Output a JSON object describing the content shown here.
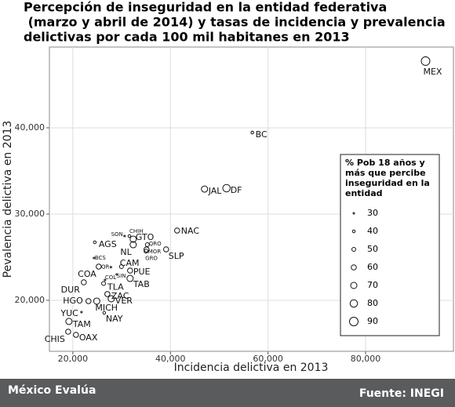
{
  "chart_data": {
    "type": "scatter",
    "title": [
      "Percepción de inseguridad en la entidad federativa",
      " (marzo y abril de 2014) y tasas de incidencia y prevalencia",
      "delictivas por cada 100 mil habitanes en 2013"
    ],
    "x_label": "Incidencia delictiva en 2013",
    "y_label": "Pevalencia delictiva en 2013",
    "xlim": [
      15200,
      98000
    ],
    "ylim": [
      14090,
      49360
    ],
    "xticks": [
      {
        "value": 20000,
        "label": "20,000"
      },
      {
        "value": 40000,
        "label": "40,000"
      },
      {
        "value": 60000,
        "label": "60,000"
      },
      {
        "value": 80000,
        "label": "80,000"
      }
    ],
    "yticks": [
      {
        "value": 20000,
        "label": "20,000"
      },
      {
        "value": 30000,
        "label": "30,000"
      },
      {
        "value": 40000,
        "label": "40,000"
      }
    ],
    "grid": true,
    "points": [
      {
        "label": "MEX",
        "x": 92290,
        "y": 47730,
        "size": 90
      },
      {
        "label": "BC",
        "x": 56790,
        "y": 39450,
        "size": 40
      },
      {
        "label": "JAL",
        "x": 46990,
        "y": 32900,
        "size": 70
      },
      {
        "label": "DF",
        "x": 51490,
        "y": 33000,
        "size": 80
      },
      {
        "label": "NAC",
        "x": 41370,
        "y": 28090,
        "size": 60
      },
      {
        "label": "SON",
        "x": 30600,
        "y": 27450,
        "size": 30
      },
      {
        "label": "CHIH",
        "x": 31600,
        "y": 27450,
        "size": 40
      },
      {
        "label": "GTO",
        "x": 32370,
        "y": 27090,
        "size": 70
      },
      {
        "label": "AGS",
        "x": 24500,
        "y": 26730,
        "size": 40
      },
      {
        "label": "QRO",
        "x": 35260,
        "y": 26450,
        "size": 50
      },
      {
        "label": "NL",
        "x": 32370,
        "y": 26450,
        "size": 70
      },
      {
        "label": "MOR",
        "x": 35100,
        "y": 25900,
        "size": 60
      },
      {
        "label": "GRO",
        "x": 35000,
        "y": 25700,
        "size": 50
      },
      {
        "label": "SLP",
        "x": 39120,
        "y": 25910,
        "size": 60
      },
      {
        "label": "BCS",
        "x": 24340,
        "y": 24910,
        "size": 30
      },
      {
        "label": "COA",
        "x": 25300,
        "y": 23910,
        "size": 60
      },
      {
        "label": "QR",
        "x": 27800,
        "y": 23850,
        "size": 30
      },
      {
        "label": "CAM",
        "x": 29960,
        "y": 23910,
        "size": 50
      },
      {
        "label": "PUE",
        "x": 31730,
        "y": 23450,
        "size": 60
      },
      {
        "label": "SIN",
        "x": 28990,
        "y": 23000,
        "size": 30
      },
      {
        "label": "TAB",
        "x": 31730,
        "y": 22540,
        "size": 70
      },
      {
        "label": "COL",
        "x": 26590,
        "y": 22360,
        "size": 30
      },
      {
        "label": "DUR",
        "x": 22250,
        "y": 22090,
        "size": 60
      },
      {
        "label": "TLA",
        "x": 26300,
        "y": 21950,
        "size": 50
      },
      {
        "label": "ZAC",
        "x": 27070,
        "y": 20730,
        "size": 60
      },
      {
        "label": "VER",
        "x": 27870,
        "y": 20180,
        "size": 70
      },
      {
        "label": "HGO",
        "x": 23200,
        "y": 19910,
        "size": 60
      },
      {
        "label": "MICH",
        "x": 24900,
        "y": 19910,
        "size": 70
      },
      {
        "label": "YUC",
        "x": 21770,
        "y": 18640,
        "size": 30
      },
      {
        "label": "NAY",
        "x": 26430,
        "y": 18550,
        "size": 40
      },
      {
        "label": "TAM",
        "x": 19200,
        "y": 17550,
        "size": 70
      },
      {
        "label": "CHIS",
        "x": 19040,
        "y": 16360,
        "size": 60
      },
      {
        "label": "OAX",
        "x": 20640,
        "y": 16000,
        "size": 60
      }
    ],
    "size_legend_title": [
      "% Pob 18 años y",
      "más que percibe",
      "inseguridad en la",
      "entidad"
    ],
    "size_legend_values": [
      30,
      40,
      50,
      60,
      70,
      80,
      90
    ]
  },
  "footer": {
    "left": "México Evalúa",
    "right": "Fuente: INEGI"
  }
}
